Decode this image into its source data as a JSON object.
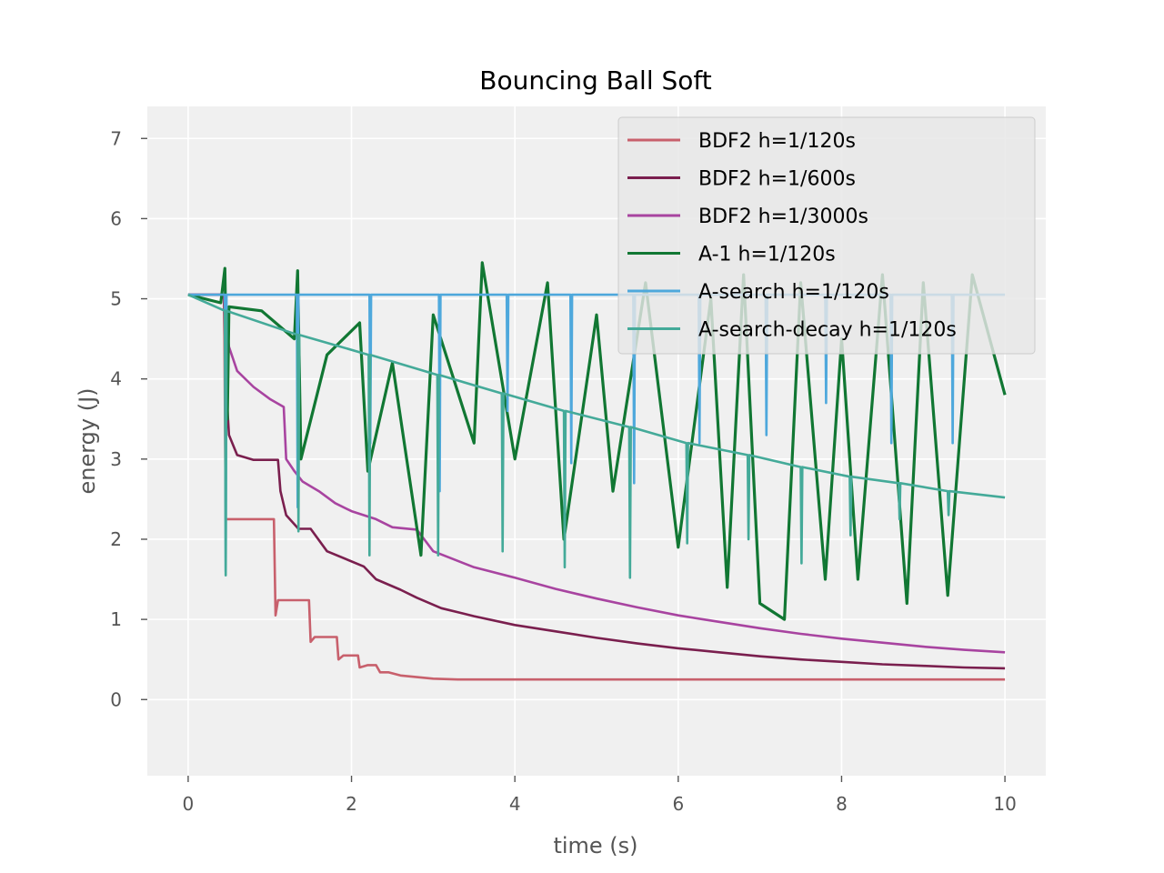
{
  "chart_data": {
    "type": "line",
    "title": "Bouncing Ball Soft",
    "xlabel": "time (s)",
    "ylabel": "energy (J)",
    "xlim": [
      -0.5,
      10.5
    ],
    "ylim": [
      -0.95,
      7.4
    ],
    "xticks": [
      0,
      2,
      4,
      6,
      8,
      10
    ],
    "yticks": [
      0,
      1,
      2,
      3,
      4,
      5,
      6,
      7
    ],
    "xtick_labels": [
      "0",
      "2",
      "4",
      "6",
      "8",
      "10"
    ],
    "ytick_labels": [
      "0",
      "1",
      "2",
      "3",
      "4",
      "5",
      "6",
      "7"
    ],
    "grid": true,
    "legend_position": "top-right",
    "series": [
      {
        "name": "BDF2 h=1/120s",
        "color": "#c8606c",
        "x": [
          0,
          0.44,
          0.46,
          0.5,
          0.55,
          1.05,
          1.07,
          1.1,
          1.48,
          1.5,
          1.55,
          1.82,
          1.84,
          1.9,
          2.08,
          2.1,
          2.2,
          2.3,
          2.35,
          2.45,
          2.6,
          2.8,
          3.0,
          3.3,
          4,
          6,
          8,
          10
        ],
        "y": [
          5.05,
          5.05,
          2.25,
          2.25,
          2.25,
          2.25,
          1.05,
          1.24,
          1.24,
          0.72,
          0.78,
          0.78,
          0.5,
          0.55,
          0.55,
          0.4,
          0.43,
          0.43,
          0.34,
          0.34,
          0.3,
          0.28,
          0.26,
          0.25,
          0.25,
          0.25,
          0.25,
          0.25
        ]
      },
      {
        "name": "BDF2 h=1/600s",
        "color": "#7a1f4e",
        "x": [
          0,
          0.44,
          0.46,
          0.5,
          0.6,
          0.8,
          1.1,
          1.13,
          1.2,
          1.35,
          1.5,
          1.7,
          2.15,
          2.3,
          2.6,
          2.8,
          3.1,
          3.5,
          4.0,
          4.5,
          5.0,
          5.5,
          6.0,
          6.5,
          7.0,
          7.5,
          8.0,
          8.5,
          9.0,
          9.5,
          10
        ],
        "y": [
          5.05,
          5.05,
          4.0,
          3.3,
          3.05,
          2.99,
          2.99,
          2.6,
          2.3,
          2.13,
          2.13,
          1.85,
          1.66,
          1.5,
          1.37,
          1.27,
          1.14,
          1.04,
          0.93,
          0.85,
          0.77,
          0.7,
          0.64,
          0.59,
          0.54,
          0.5,
          0.47,
          0.44,
          0.42,
          0.4,
          0.39
        ]
      },
      {
        "name": "BDF2 h=1/3000s",
        "color": "#a844a0",
        "x": [
          0,
          0.44,
          0.46,
          0.5,
          0.6,
          0.8,
          1.0,
          1.17,
          1.2,
          1.3,
          1.4,
          1.6,
          1.8,
          2.0,
          2.3,
          2.5,
          2.8,
          3.0,
          3.5,
          4.0,
          4.5,
          5.0,
          5.5,
          6.0,
          6.5,
          7.0,
          7.5,
          8.0,
          8.5,
          9.0,
          9.5,
          10
        ],
        "y": [
          5.05,
          5.05,
          4.8,
          4.4,
          4.1,
          3.9,
          3.75,
          3.65,
          3.0,
          2.85,
          2.72,
          2.6,
          2.45,
          2.35,
          2.25,
          2.15,
          2.12,
          1.85,
          1.65,
          1.52,
          1.38,
          1.26,
          1.15,
          1.05,
          0.97,
          0.89,
          0.82,
          0.76,
          0.71,
          0.66,
          0.62,
          0.59
        ]
      },
      {
        "name": "A-1 h=1/120s",
        "color": "#117733",
        "x": [
          0,
          0.4,
          0.45,
          0.48,
          0.5,
          0.9,
          1.3,
          1.34,
          1.38,
          1.7,
          2.1,
          2.2,
          2.5,
          2.85,
          3.0,
          3.5,
          3.6,
          4.0,
          4.4,
          4.6,
          5.0,
          5.2,
          5.6,
          6.0,
          6.4,
          6.6,
          6.8,
          7.0,
          7.3,
          7.5,
          7.8,
          8.0,
          8.2,
          8.5,
          8.8,
          9.0,
          9.3,
          9.6,
          10
        ],
        "y": [
          5.05,
          4.95,
          5.38,
          3.5,
          4.9,
          4.85,
          4.5,
          5.35,
          3.0,
          4.3,
          4.7,
          2.85,
          4.2,
          1.8,
          4.8,
          3.2,
          5.45,
          3.0,
          5.2,
          2.0,
          4.8,
          2.6,
          5.2,
          1.9,
          5.0,
          1.4,
          5.3,
          1.2,
          1.0,
          5.2,
          1.5,
          4.5,
          1.5,
          5.3,
          1.2,
          5.2,
          1.3,
          5.3,
          3.8
        ]
      },
      {
        "name": "A-search h=1/120s",
        "color": "#4ea8dc",
        "x": [
          0,
          0.45,
          0.46,
          0.47,
          0.55,
          1.33,
          1.34,
          1.35,
          2.22,
          2.23,
          2.24,
          3.07,
          3.08,
          3.09,
          3.9,
          3.91,
          3.92,
          4.68,
          4.69,
          4.7,
          5.45,
          5.46,
          5.47,
          6.25,
          6.26,
          6.27,
          7.07,
          7.08,
          7.09,
          7.8,
          7.81,
          7.82,
          8.6,
          8.61,
          8.62,
          9.35,
          9.36,
          9.37,
          10
        ],
        "y": [
          5.05,
          5.05,
          1.6,
          5.05,
          5.05,
          5.05,
          2.4,
          5.05,
          5.05,
          3.2,
          5.05,
          5.05,
          2.6,
          5.05,
          5.05,
          3.6,
          5.05,
          5.05,
          2.95,
          5.05,
          5.05,
          2.7,
          5.05,
          5.05,
          3.2,
          5.05,
          5.05,
          3.3,
          5.05,
          5.05,
          3.7,
          5.05,
          5.05,
          3.2,
          5.05,
          5.05,
          3.2,
          5.05,
          5.05
        ]
      },
      {
        "name": "A-search-decay h=1/120s",
        "color": "#44aa99",
        "x": [
          0,
          0.45,
          0.46,
          0.47,
          1.34,
          1.35,
          1.36,
          2.21,
          2.22,
          2.23,
          3.05,
          3.06,
          3.07,
          3.84,
          3.85,
          3.86,
          4.6,
          4.61,
          4.62,
          5.4,
          5.41,
          5.42,
          6.1,
          6.11,
          6.12,
          6.85,
          6.86,
          6.87,
          7.5,
          7.51,
          7.52,
          8.1,
          8.11,
          8.12,
          8.7,
          8.71,
          8.72,
          9.3,
          9.31,
          9.32,
          10
        ],
        "y": [
          5.05,
          4.85,
          1.55,
          4.85,
          4.55,
          2.1,
          4.55,
          4.3,
          1.8,
          4.3,
          4.05,
          1.8,
          4.05,
          3.82,
          1.85,
          3.82,
          3.6,
          1.65,
          3.6,
          3.4,
          1.52,
          3.4,
          3.2,
          1.95,
          3.2,
          3.05,
          2.0,
          3.05,
          2.9,
          1.7,
          2.9,
          2.78,
          2.05,
          2.78,
          2.7,
          2.25,
          2.7,
          2.6,
          2.3,
          2.6,
          2.52
        ]
      }
    ]
  }
}
